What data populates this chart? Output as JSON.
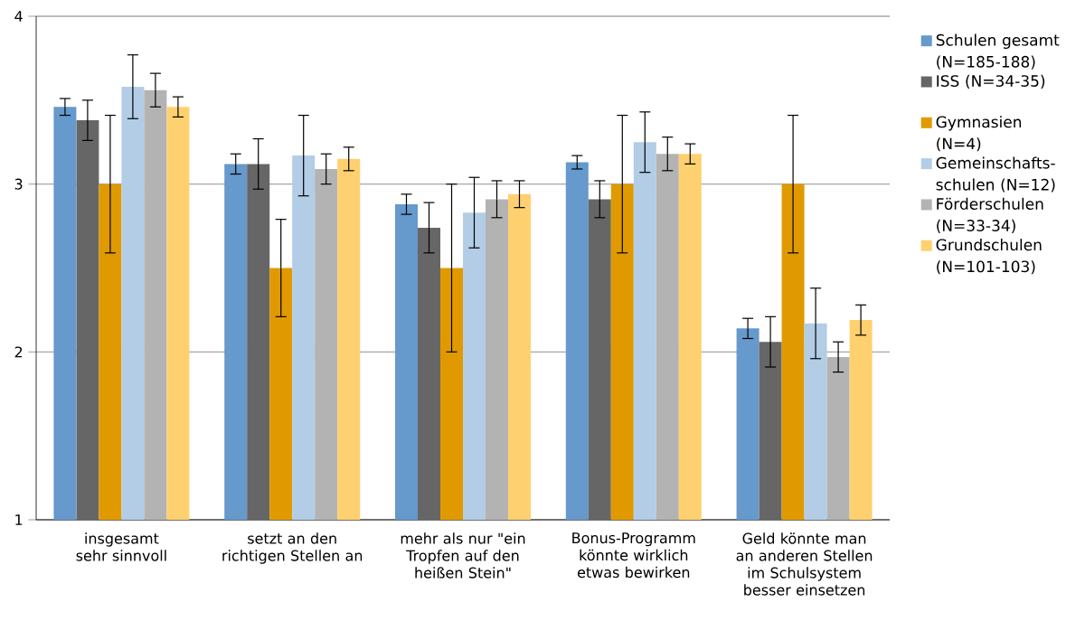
{
  "chart_data": {
    "type": "bar",
    "categories": [
      "insgesamt sehr sinnvoll",
      "setzt an den richtigen Stellen an",
      "mehr als nur \"ein Tropfen auf den heißen Stein\"",
      "Bonus-Programm könnte wirklich etwas bewirken",
      "Geld könnte man an anderen Stellen im Schulsystem besser einsetzen"
    ],
    "series": [
      {
        "name": "Schulen gesamt (N=185-188)",
        "color": "#6699cc",
        "values": [
          3.46,
          3.12,
          2.88,
          3.13,
          2.14
        ],
        "errors": [
          0.05,
          0.06,
          0.06,
          0.04,
          0.06
        ]
      },
      {
        "name": "ISS (N=34-35)",
        "color": "#666666",
        "values": [
          3.38,
          3.12,
          2.74,
          2.91,
          2.06
        ],
        "errors": [
          0.12,
          0.15,
          0.15,
          0.11,
          0.15
        ]
      },
      {
        "name": "Gymnasien (N=4)",
        "color": "#e09a00",
        "values": [
          3.0,
          2.5,
          2.5,
          3.0,
          3.0
        ],
        "errors": [
          0.41,
          0.29,
          0.5,
          0.41,
          0.41
        ]
      },
      {
        "name": "Gemeinschafts-schulen (N=12)",
        "color": "#b3cde6",
        "values": [
          3.58,
          3.17,
          2.83,
          3.25,
          2.17
        ],
        "errors": [
          0.19,
          0.24,
          0.21,
          0.18,
          0.21
        ]
      },
      {
        "name": "Förderschulen (N=33-34)",
        "color": "#b3b3b3",
        "values": [
          3.56,
          3.09,
          2.91,
          3.18,
          1.97
        ],
        "errors": [
          0.1,
          0.09,
          0.11,
          0.1,
          0.09
        ]
      },
      {
        "name": "Grundschulen (N=101-103)",
        "color": "#ffd070",
        "values": [
          3.46,
          3.15,
          2.94,
          3.18,
          2.19
        ],
        "errors": [
          0.06,
          0.07,
          0.08,
          0.06,
          0.09
        ]
      }
    ],
    "ylim": [
      1,
      4
    ],
    "yticks": [
      1,
      2,
      3,
      4
    ],
    "grid": "y",
    "legend": "right"
  }
}
